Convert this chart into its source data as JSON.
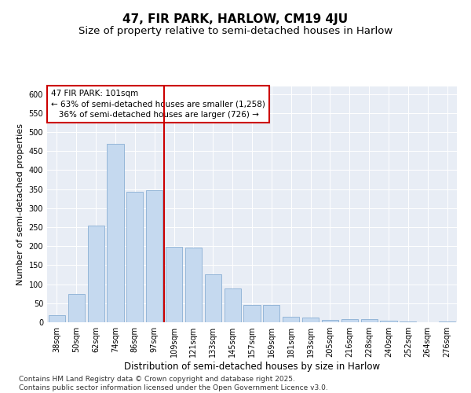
{
  "title": "47, FIR PARK, HARLOW, CM19 4JU",
  "subtitle": "Size of property relative to semi-detached houses in Harlow",
  "xlabel": "Distribution of semi-detached houses by size in Harlow",
  "ylabel": "Number of semi-detached properties",
  "categories": [
    "38sqm",
    "50sqm",
    "62sqm",
    "74sqm",
    "86sqm",
    "97sqm",
    "109sqm",
    "121sqm",
    "133sqm",
    "145sqm",
    "157sqm",
    "169sqm",
    "181sqm",
    "193sqm",
    "205sqm",
    "216sqm",
    "228sqm",
    "240sqm",
    "252sqm",
    "264sqm",
    "276sqm"
  ],
  "values": [
    18,
    74,
    255,
    470,
    343,
    348,
    198,
    196,
    127,
    88,
    46,
    46,
    15,
    12,
    6,
    9,
    9,
    4,
    2,
    1,
    2
  ],
  "bar_color": "#c5d9ef",
  "bar_edge_color": "#8aafd4",
  "vline_x": 5.5,
  "vline_color": "#cc0000",
  "annotation_text": "47 FIR PARK: 101sqm\n← 63% of semi-detached houses are smaller (1,258)\n   36% of semi-detached houses are larger (726) →",
  "annotation_box_color": "white",
  "annotation_box_edge": "#cc0000",
  "ylim": [
    0,
    620
  ],
  "yticks": [
    0,
    50,
    100,
    150,
    200,
    250,
    300,
    350,
    400,
    450,
    500,
    550,
    600
  ],
  "bg_color": "#e8edf5",
  "grid_color": "#ffffff",
  "footer": "Contains HM Land Registry data © Crown copyright and database right 2025.\nContains public sector information licensed under the Open Government Licence v3.0.",
  "title_fontsize": 11,
  "subtitle_fontsize": 9.5,
  "xlabel_fontsize": 8.5,
  "ylabel_fontsize": 8,
  "tick_fontsize": 7,
  "annotation_fontsize": 7.5,
  "footer_fontsize": 6.5
}
